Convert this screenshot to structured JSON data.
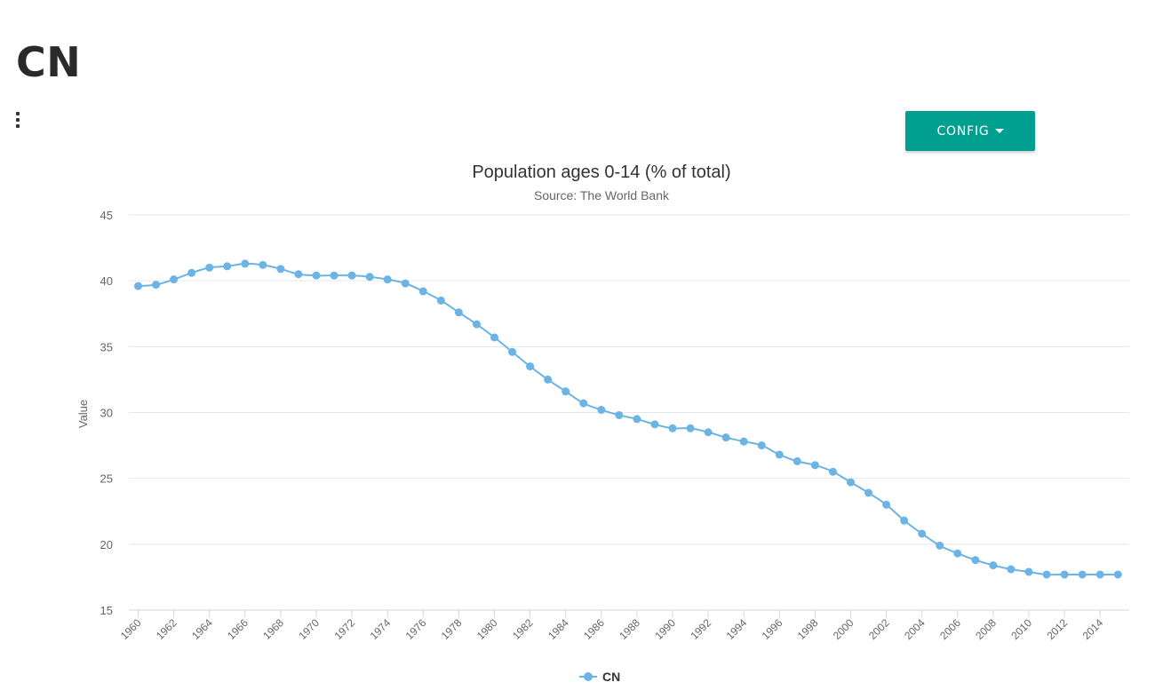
{
  "header": {
    "title": "CN",
    "menu_icon": "vertical-ellipsis-icon"
  },
  "toolbar": {
    "config_label": "CONFIG",
    "config_icon": "caret-down-icon",
    "config_color": "#009f8f"
  },
  "chart_data": {
    "type": "line",
    "title": "Population ages 0-14 (% of total)",
    "subtitle": "Source: The World Bank",
    "xlabel": "",
    "ylabel": "Value",
    "ylim": [
      15,
      45
    ],
    "yticks": [
      15,
      20,
      25,
      30,
      35,
      40,
      45
    ],
    "xticks": [
      1960,
      1962,
      1964,
      1966,
      1968,
      1970,
      1972,
      1974,
      1976,
      1978,
      1980,
      1982,
      1984,
      1986,
      1988,
      1990,
      1992,
      1994,
      1996,
      1998,
      2000,
      2002,
      2004,
      2006,
      2008,
      2010,
      2012,
      2014
    ],
    "grid": true,
    "legend": "bottom-center",
    "x": [
      1960,
      1961,
      1962,
      1963,
      1964,
      1965,
      1966,
      1967,
      1968,
      1969,
      1970,
      1971,
      1972,
      1973,
      1974,
      1975,
      1976,
      1977,
      1978,
      1979,
      1980,
      1981,
      1982,
      1983,
      1984,
      1985,
      1986,
      1987,
      1988,
      1989,
      1990,
      1991,
      1992,
      1993,
      1994,
      1995,
      1996,
      1997,
      1998,
      1999,
      2000,
      2001,
      2002,
      2003,
      2004,
      2005,
      2006,
      2007,
      2008,
      2009,
      2010,
      2011,
      2012,
      2013,
      2014,
      2015
    ],
    "series": [
      {
        "name": "CN",
        "color": "#6cb4e4",
        "values": [
          39.6,
          39.7,
          40.1,
          40.6,
          41.0,
          41.1,
          41.3,
          41.2,
          40.9,
          40.5,
          40.4,
          40.4,
          40.4,
          40.3,
          40.1,
          39.8,
          39.2,
          38.5,
          37.6,
          36.7,
          35.7,
          34.6,
          33.5,
          32.5,
          31.6,
          30.7,
          30.2,
          29.8,
          29.5,
          29.1,
          28.8,
          28.8,
          28.5,
          28.1,
          27.8,
          27.5,
          26.8,
          26.3,
          26.0,
          25.5,
          24.7,
          23.9,
          23.0,
          21.8,
          20.8,
          19.9,
          19.3,
          18.8,
          18.4,
          18.1,
          17.9,
          17.7,
          17.7,
          17.7,
          17.7,
          17.7
        ]
      }
    ]
  }
}
